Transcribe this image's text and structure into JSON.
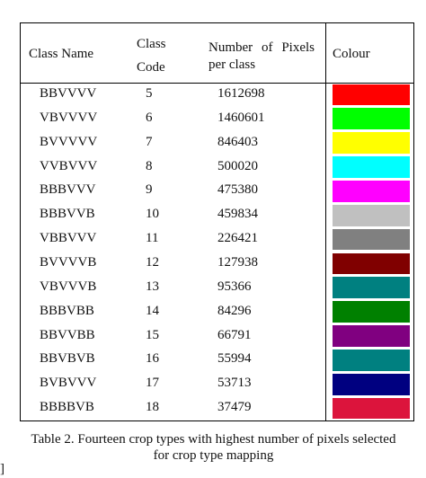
{
  "table": {
    "headers": [
      "Class Name",
      "Class Code",
      "Number of Pixels per class",
      "Colour"
    ],
    "rows": [
      {
        "name": "BBVVVV",
        "code": "5",
        "pixels": "1612698",
        "color": "#ff0000"
      },
      {
        "name": "VBVVVV",
        "code": "6",
        "pixels": "1460601",
        "color": "#00ff00"
      },
      {
        "name": "BVVVVV",
        "code": "7",
        "pixels": "846403",
        "color": "#ffff00"
      },
      {
        "name": "VVBVVV",
        "code": "8",
        "pixels": "500020",
        "color": "#00ffff"
      },
      {
        "name": "BBBVVV",
        "code": "9",
        "pixels": "475380",
        "color": "#ff00ff"
      },
      {
        "name": "BBBVVB",
        "code": "10",
        "pixels": "459834",
        "color": "#c0c0c0"
      },
      {
        "name": "VBBVVV",
        "code": "11",
        "pixels": "226421",
        "color": "#808080"
      },
      {
        "name": "BVVVVB",
        "code": "12",
        "pixels": "127938",
        "color": "#800000"
      },
      {
        "name": "VBVVVB",
        "code": "13",
        "pixels": "95366",
        "color": "#008080"
      },
      {
        "name": "BBBVBB",
        "code": "14",
        "pixels": "84296",
        "color": "#008000"
      },
      {
        "name": "BBVVBB",
        "code": "15",
        "pixels": "66791",
        "color": "#800080"
      },
      {
        "name": "BBVBVB",
        "code": "16",
        "pixels": "55994",
        "color": "#008080"
      },
      {
        "name": "BVBVVV",
        "code": "17",
        "pixels": "53713",
        "color": "#000080"
      },
      {
        "name": "BBBBVB",
        "code": "18",
        "pixels": "37479",
        "color": "#dc143c"
      }
    ]
  },
  "caption": "Table 2. Fourteen crop types with highest number of pixels selected for crop type mapping"
}
